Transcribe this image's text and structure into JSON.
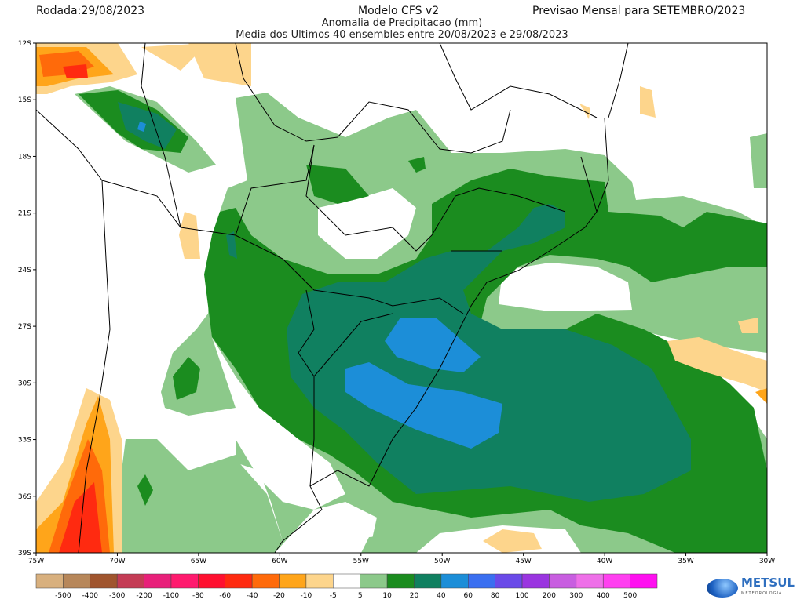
{
  "header": {
    "run_date": "Rodada:29/08/2023",
    "model": "Modelo CFS v2",
    "forecast": "Previsao Mensal para SETEMBRO/2023",
    "variable": "Anomalia de Precipitacao (mm)",
    "description": "Media dos Ultimos 40 ensembles entre 20/08/2023 e 29/08/2023"
  },
  "map": {
    "lat_labels": [
      "12S",
      "15S",
      "18S",
      "21S",
      "24S",
      "27S",
      "30S",
      "33S",
      "36S",
      "39S"
    ],
    "lon_labels": [
      "75W",
      "70W",
      "65W",
      "60W",
      "55W",
      "50W",
      "45W",
      "40W",
      "35W",
      "30W"
    ],
    "colors": {
      "light_green": "#8cc98a",
      "green": "#1b8c1f",
      "teal": "#108060",
      "blue": "#1c8ed8",
      "light_orange": "#fdd58c",
      "orange": "#ffa51a",
      "dark_orange": "#ff6a0a",
      "red": "#ff2a10"
    }
  },
  "colorbar": {
    "colors": [
      "#d8b07e",
      "#b7875a",
      "#a0552e",
      "#c43c55",
      "#e8207a",
      "#ff1a6e",
      "#ff1030",
      "#ff2a10",
      "#ff6a0a",
      "#ffa51a",
      "#fdd58c",
      "#ffffff",
      "#8cc98a",
      "#1b8c1f",
      "#108060",
      "#1c8ed8",
      "#3a6ff0",
      "#6a4ae8",
      "#9a35e0",
      "#c85ee0",
      "#ee70e8",
      "#ff40f0",
      "#ff10f0"
    ],
    "labels": [
      "-500",
      "-400",
      "-300",
      "-200",
      "-100",
      "-80",
      "-60",
      "-40",
      "-20",
      "-10",
      "-5",
      "5",
      "10",
      "20",
      "40",
      "60",
      "80",
      "100",
      "200",
      "300",
      "400",
      "500"
    ]
  },
  "logo": {
    "name": "METSUL",
    "tagline": "METEOROLOGIA"
  }
}
